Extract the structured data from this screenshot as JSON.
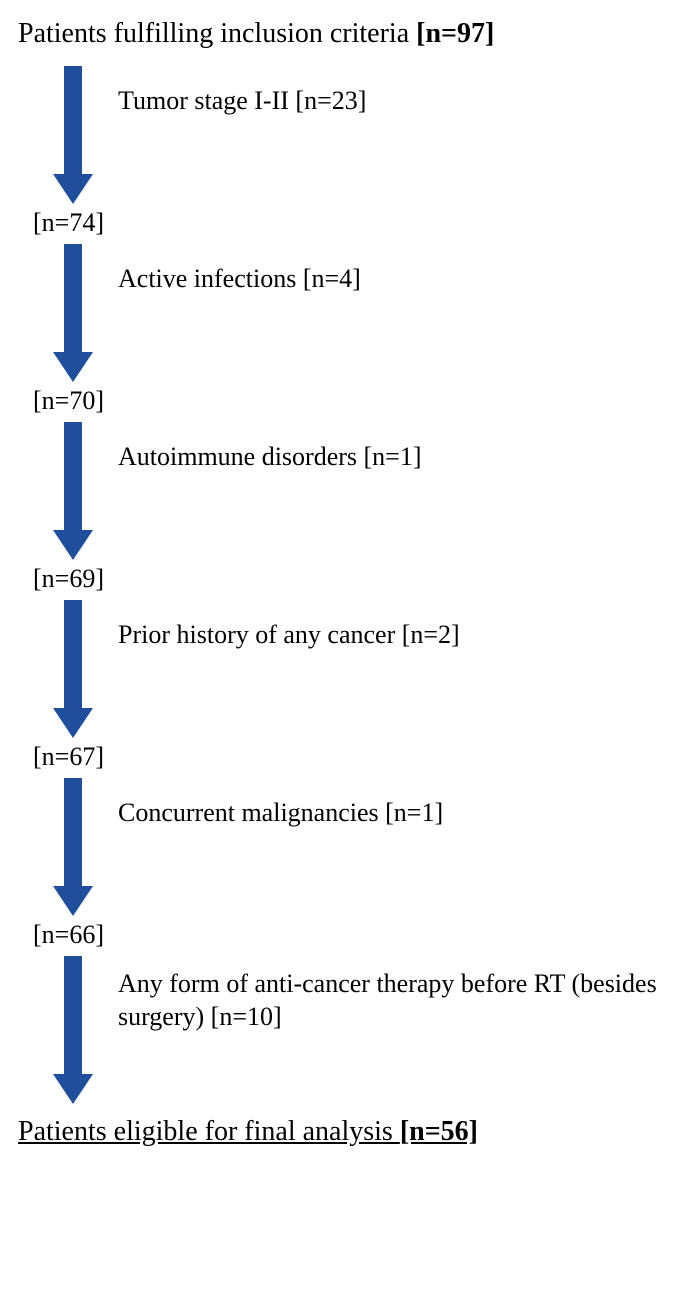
{
  "title_prefix": "Patients fulfilling inclusion criteria ",
  "title_bold": "[n=97]",
  "final_prefix": "Patients eligible for final analysis ",
  "final_bold": "[n=56]",
  "arrow_color": "#1f4e9c",
  "background": "#ffffff",
  "text_color": "#000000",
  "steps": [
    {
      "exclusion": "Tumor stage I-II [n=23]",
      "remaining": "[n=74]"
    },
    {
      "exclusion": "Active infections [n=4]",
      "remaining": "[n=70]"
    },
    {
      "exclusion": "Autoimmune disorders [n=1]",
      "remaining": "[n=69]"
    },
    {
      "exclusion": "Prior history of any cancer [n=2]",
      "remaining": "[n=67]"
    },
    {
      "exclusion": "Concurrent malignancies [n=1]",
      "remaining": "[n=66]"
    },
    {
      "exclusion": "Any form of anti-cancer therapy before RT (besides surgery) [n=10]",
      "remaining": null
    }
  ]
}
